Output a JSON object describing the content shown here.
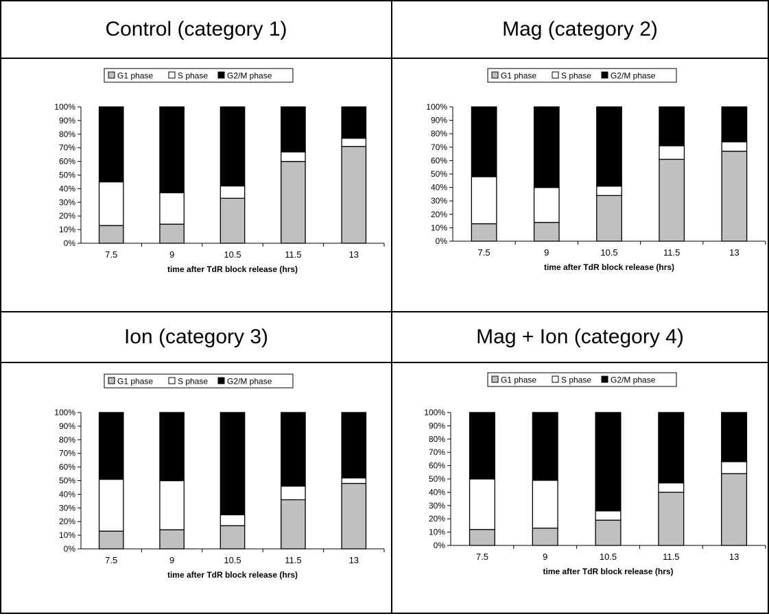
{
  "colors": {
    "g1": "#c0c0c0",
    "s": "#ffffff",
    "g2m": "#000000"
  },
  "chart_data": [
    {
      "type": "bar",
      "stacked": true,
      "title": "Control (category 1)",
      "legend": [
        "G1 phase",
        "S phase",
        "G2/M phase"
      ],
      "legend_position": "top",
      "xlabel": "time after TdR block release (hrs)",
      "ylabel": "",
      "ylim": [
        0,
        100
      ],
      "yticks": [
        "0%",
        "10%",
        "20%",
        "30%",
        "40%",
        "50%",
        "60%",
        "70%",
        "80%",
        "90%",
        "100%"
      ],
      "categories": [
        "7.5",
        "9",
        "10.5",
        "11.5",
        "13"
      ],
      "series": [
        {
          "name": "G1 phase",
          "values": [
            13,
            14,
            33,
            60,
            71
          ]
        },
        {
          "name": "S phase",
          "values": [
            32,
            23,
            9,
            7,
            6
          ]
        },
        {
          "name": "G2/M phase",
          "values": [
            55,
            63,
            58,
            33,
            23
          ]
        }
      ]
    },
    {
      "type": "bar",
      "stacked": true,
      "title": "Mag (category 2)",
      "legend": [
        "G1 phase",
        "S phase",
        "G2/M phase"
      ],
      "legend_position": "top",
      "xlabel": "time after TdR block release (hrs)",
      "ylabel": "",
      "ylim": [
        0,
        100
      ],
      "yticks": [
        "0%",
        "10%",
        "20%",
        "30%",
        "40%",
        "50%",
        "60%",
        "70%",
        "80%",
        "90%",
        "100%"
      ],
      "categories": [
        "7.5",
        "9",
        "10.5",
        "11.5",
        "13"
      ],
      "series": [
        {
          "name": "G1 phase",
          "values": [
            13,
            14,
            34,
            61,
            67
          ]
        },
        {
          "name": "S phase",
          "values": [
            35,
            26,
            7,
            10,
            7
          ]
        },
        {
          "name": "G2/M phase",
          "values": [
            52,
            60,
            59,
            29,
            26
          ]
        }
      ]
    },
    {
      "type": "bar",
      "stacked": true,
      "title": "Ion (category 3)",
      "legend": [
        "G1 phase",
        "S phase",
        "G2/M phase"
      ],
      "legend_position": "top",
      "xlabel": "time after TdR block release (hrs)",
      "ylabel": "",
      "ylim": [
        0,
        100
      ],
      "yticks": [
        "0%",
        "10%",
        "20%",
        "30%",
        "40%",
        "50%",
        "60%",
        "70%",
        "80%",
        "90%",
        "100%"
      ],
      "categories": [
        "7.5",
        "9",
        "10.5",
        "11.5",
        "13"
      ],
      "series": [
        {
          "name": "G1 phase",
          "values": [
            13,
            14,
            17,
            36,
            48
          ]
        },
        {
          "name": "S phase",
          "values": [
            38,
            36,
            8,
            10,
            4
          ]
        },
        {
          "name": "G2/M phase",
          "values": [
            49,
            50,
            75,
            54,
            48
          ]
        }
      ]
    },
    {
      "type": "bar",
      "stacked": true,
      "title": "Mag + Ion (category 4)",
      "legend": [
        "G1 phase",
        "S phase",
        "G2/M phase"
      ],
      "legend_position": "top",
      "xlabel": "time after TdR block release (hrs)",
      "ylabel": "",
      "ylim": [
        0,
        100
      ],
      "yticks": [
        "0%",
        "10%",
        "20%",
        "30%",
        "40%",
        "50%",
        "60%",
        "70%",
        "80%",
        "90%",
        "100%"
      ],
      "categories": [
        "7.5",
        "9",
        "10.5",
        "11.5",
        "13"
      ],
      "series": [
        {
          "name": "G1 phase",
          "values": [
            12,
            13,
            19,
            40,
            54
          ]
        },
        {
          "name": "S phase",
          "values": [
            38,
            36,
            7,
            7,
            9
          ]
        },
        {
          "name": "G2/M phase",
          "values": [
            50,
            51,
            74,
            53,
            37
          ]
        }
      ]
    }
  ]
}
